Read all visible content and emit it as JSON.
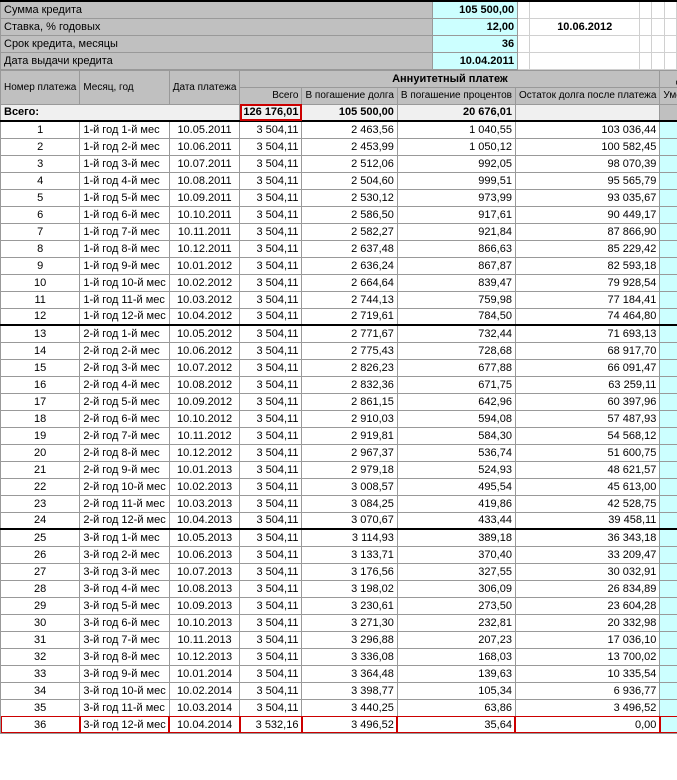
{
  "params": {
    "rows": [
      {
        "label": "Сумма кредита",
        "value": "105 500,00"
      },
      {
        "label": "Ставка, % годовых",
        "value": "12,00",
        "side_value": "10.06.2012"
      },
      {
        "label": "Срок кредита, месяцы",
        "value": "36"
      },
      {
        "label": "Дата выдачи кредита",
        "value": "10.04.2011"
      }
    ]
  },
  "headers": {
    "num": "Номер платежа",
    "month": "Месяц, год",
    "date": "Дата платежа",
    "annuity_group": "Аннуитетный платеж",
    "total": "Всего",
    "principal": "В погашение долга",
    "interest": "В погашение процентов",
    "balance": "Остаток долга после платежа",
    "early_group": "Досрочный",
    "early": "Уменьшение срока"
  },
  "totals": {
    "label": "Всего:",
    "total": "126 176,01",
    "principal": "105 500,00",
    "interest": "20 676,01"
  },
  "colors": {
    "header_bg": "#c0c0c0",
    "input_bg": "#ccffff",
    "grid": "#999999",
    "highlight": "#cc0000"
  },
  "rows": [
    {
      "n": "1",
      "m": "1-й год 1-й мес",
      "d": "10.05.2011",
      "t": "3 504,11",
      "p": "2 463,56",
      "i": "1 040,55",
      "b": "103 036,44"
    },
    {
      "n": "2",
      "m": "1-й год 2-й мес",
      "d": "10.06.2011",
      "t": "3 504,11",
      "p": "2 453,99",
      "i": "1 050,12",
      "b": "100 582,45"
    },
    {
      "n": "3",
      "m": "1-й год 3-й мес",
      "d": "10.07.2011",
      "t": "3 504,11",
      "p": "2 512,06",
      "i": "992,05",
      "b": "98 070,39"
    },
    {
      "n": "4",
      "m": "1-й год 4-й мес",
      "d": "10.08.2011",
      "t": "3 504,11",
      "p": "2 504,60",
      "i": "999,51",
      "b": "95 565,79"
    },
    {
      "n": "5",
      "m": "1-й год 5-й мес",
      "d": "10.09.2011",
      "t": "3 504,11",
      "p": "2 530,12",
      "i": "973,99",
      "b": "93 035,67"
    },
    {
      "n": "6",
      "m": "1-й год 6-й мес",
      "d": "10.10.2011",
      "t": "3 504,11",
      "p": "2 586,50",
      "i": "917,61",
      "b": "90 449,17"
    },
    {
      "n": "7",
      "m": "1-й год 7-й мес",
      "d": "10.11.2011",
      "t": "3 504,11",
      "p": "2 582,27",
      "i": "921,84",
      "b": "87 866,90"
    },
    {
      "n": "8",
      "m": "1-й год 8-й мес",
      "d": "10.12.2011",
      "t": "3 504,11",
      "p": "2 637,48",
      "i": "866,63",
      "b": "85 229,42"
    },
    {
      "n": "9",
      "m": "1-й год 9-й мес",
      "d": "10.01.2012",
      "t": "3 504,11",
      "p": "2 636,24",
      "i": "867,87",
      "b": "82 593,18"
    },
    {
      "n": "10",
      "m": "1-й год 10-й мес",
      "d": "10.02.2012",
      "t": "3 504,11",
      "p": "2 664,64",
      "i": "839,47",
      "b": "79 928,54"
    },
    {
      "n": "11",
      "m": "1-й год 11-й мес",
      "d": "10.03.2012",
      "t": "3 504,11",
      "p": "2 744,13",
      "i": "759,98",
      "b": "77 184,41"
    },
    {
      "n": "12",
      "m": "1-й год 12-й мес",
      "d": "10.04.2012",
      "t": "3 504,11",
      "p": "2 719,61",
      "i": "784,50",
      "b": "74 464,80"
    },
    {
      "n": "13",
      "m": "2-й год 1-й мес",
      "d": "10.05.2012",
      "t": "3 504,11",
      "p": "2 771,67",
      "i": "732,44",
      "b": "71 693,13",
      "sep": true
    },
    {
      "n": "14",
      "m": "2-й год 2-й мес",
      "d": "10.06.2012",
      "t": "3 504,11",
      "p": "2 775,43",
      "i": "728,68",
      "b": "68 917,70"
    },
    {
      "n": "15",
      "m": "2-й год 3-й мес",
      "d": "10.07.2012",
      "t": "3 504,11",
      "p": "2 826,23",
      "i": "677,88",
      "b": "66 091,47"
    },
    {
      "n": "16",
      "m": "2-й год 4-й мес",
      "d": "10.08.2012",
      "t": "3 504,11",
      "p": "2 832,36",
      "i": "671,75",
      "b": "63 259,11"
    },
    {
      "n": "17",
      "m": "2-й год 5-й мес",
      "d": "10.09.2012",
      "t": "3 504,11",
      "p": "2 861,15",
      "i": "642,96",
      "b": "60 397,96"
    },
    {
      "n": "18",
      "m": "2-й год 6-й мес",
      "d": "10.10.2012",
      "t": "3 504,11",
      "p": "2 910,03",
      "i": "594,08",
      "b": "57 487,93"
    },
    {
      "n": "19",
      "m": "2-й год 7-й мес",
      "d": "10.11.2012",
      "t": "3 504,11",
      "p": "2 919,81",
      "i": "584,30",
      "b": "54 568,12"
    },
    {
      "n": "20",
      "m": "2-й год 8-й мес",
      "d": "10.12.2012",
      "t": "3 504,11",
      "p": "2 967,37",
      "i": "536,74",
      "b": "51 600,75"
    },
    {
      "n": "21",
      "m": "2-й год 9-й мес",
      "d": "10.01.2013",
      "t": "3 504,11",
      "p": "2 979,18",
      "i": "524,93",
      "b": "48 621,57"
    },
    {
      "n": "22",
      "m": "2-й год 10-й мес",
      "d": "10.02.2013",
      "t": "3 504,11",
      "p": "3 008,57",
      "i": "495,54",
      "b": "45 613,00"
    },
    {
      "n": "23",
      "m": "2-й год 11-й мес",
      "d": "10.03.2013",
      "t": "3 504,11",
      "p": "3 084,25",
      "i": "419,86",
      "b": "42 528,75"
    },
    {
      "n": "24",
      "m": "2-й год 12-й мес",
      "d": "10.04.2013",
      "t": "3 504,11",
      "p": "3 070,67",
      "i": "433,44",
      "b": "39 458,11"
    },
    {
      "n": "25",
      "m": "3-й год 1-й мес",
      "d": "10.05.2013",
      "t": "3 504,11",
      "p": "3 114,93",
      "i": "389,18",
      "b": "36 343,18",
      "sep": true
    },
    {
      "n": "26",
      "m": "3-й год 2-й мес",
      "d": "10.06.2013",
      "t": "3 504,11",
      "p": "3 133,71",
      "i": "370,40",
      "b": "33 209,47"
    },
    {
      "n": "27",
      "m": "3-й год 3-й мес",
      "d": "10.07.2013",
      "t": "3 504,11",
      "p": "3 176,56",
      "i": "327,55",
      "b": "30 032,91"
    },
    {
      "n": "28",
      "m": "3-й год 4-й мес",
      "d": "10.08.2013",
      "t": "3 504,11",
      "p": "3 198,02",
      "i": "306,09",
      "b": "26 834,89"
    },
    {
      "n": "29",
      "m": "3-й год 5-й мес",
      "d": "10.09.2013",
      "t": "3 504,11",
      "p": "3 230,61",
      "i": "273,50",
      "b": "23 604,28"
    },
    {
      "n": "30",
      "m": "3-й год 6-й мес",
      "d": "10.10.2013",
      "t": "3 504,11",
      "p": "3 271,30",
      "i": "232,81",
      "b": "20 332,98"
    },
    {
      "n": "31",
      "m": "3-й год 7-й мес",
      "d": "10.11.2013",
      "t": "3 504,11",
      "p": "3 296,88",
      "i": "207,23",
      "b": "17 036,10"
    },
    {
      "n": "32",
      "m": "3-й год 8-й мес",
      "d": "10.12.2013",
      "t": "3 504,11",
      "p": "3 336,08",
      "i": "168,03",
      "b": "13 700,02"
    },
    {
      "n": "33",
      "m": "3-й год 9-й мес",
      "d": "10.01.2014",
      "t": "3 504,11",
      "p": "3 364,48",
      "i": "139,63",
      "b": "10 335,54"
    },
    {
      "n": "34",
      "m": "3-й год 10-й мес",
      "d": "10.02.2014",
      "t": "3 504,11",
      "p": "3 398,77",
      "i": "105,34",
      "b": "6 936,77"
    },
    {
      "n": "35",
      "m": "3-й год 11-й мес",
      "d": "10.03.2014",
      "t": "3 504,11",
      "p": "3 440,25",
      "i": "63,86",
      "b": "3 496,52"
    },
    {
      "n": "36",
      "m": "3-й год 12-й мес",
      "d": "10.04.2014",
      "t": "3 532,16",
      "p": "3 496,52",
      "i": "35,64",
      "b": "0,00",
      "hl": true
    }
  ]
}
